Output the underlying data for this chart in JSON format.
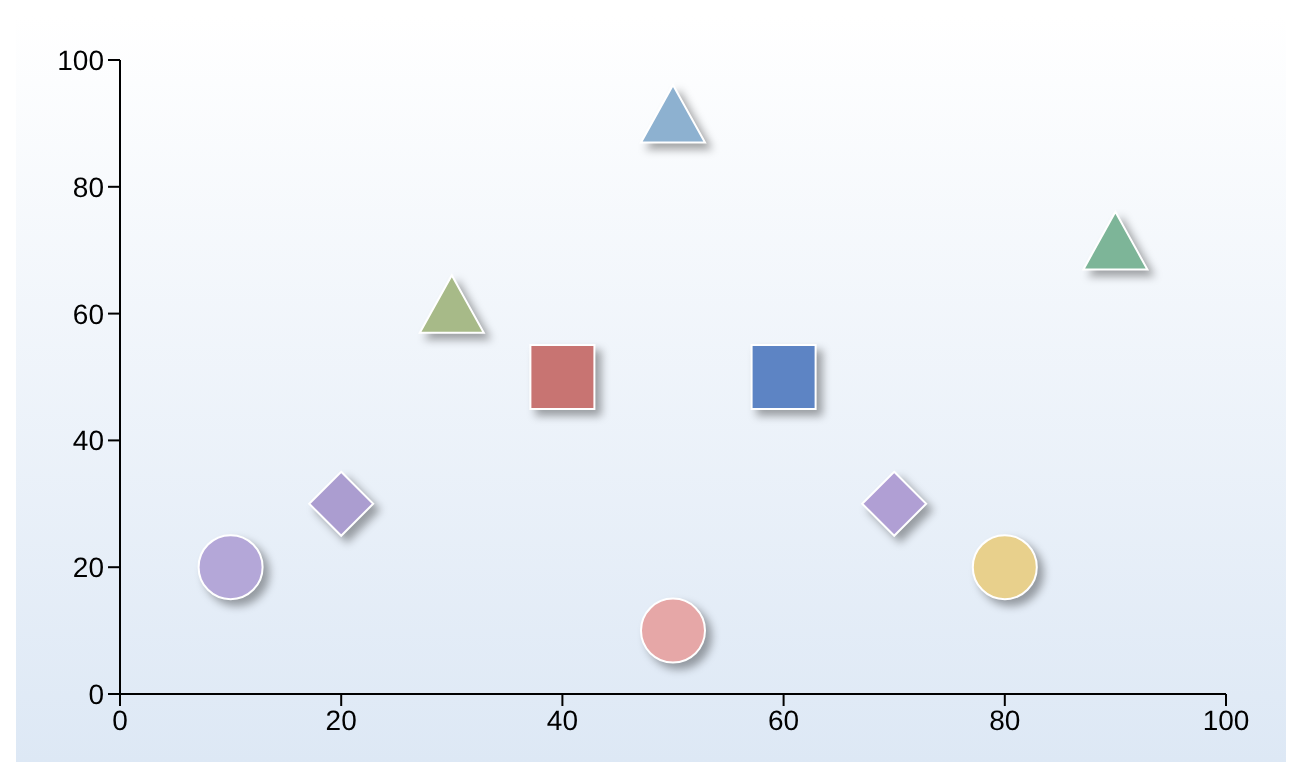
{
  "chart_data": {
    "type": "scatter",
    "series": [
      {
        "x": [
          10
        ],
        "values": [
          20
        ],
        "color": "#b4a7d8",
        "marker": "circle"
      },
      {
        "x": [
          20
        ],
        "values": [
          30
        ],
        "color": "#ab9dd0",
        "marker": "diamond"
      },
      {
        "x": [
          30
        ],
        "values": [
          60
        ],
        "color": "#a7ba88",
        "marker": "triangle"
      },
      {
        "x": [
          40
        ],
        "values": [
          50
        ],
        "color": "#c87472",
        "marker": "square"
      },
      {
        "x": [
          50
        ],
        "values": [
          90
        ],
        "color": "#8db1d0",
        "marker": "triangle"
      },
      {
        "x": [
          50
        ],
        "values": [
          10
        ],
        "color": "#e6a7a7",
        "marker": "circle"
      },
      {
        "x": [
          60
        ],
        "values": [
          50
        ],
        "color": "#5d84c4",
        "marker": "square"
      },
      {
        "x": [
          70
        ],
        "values": [
          30
        ],
        "color": "#b09fd4",
        "marker": "diamond"
      },
      {
        "x": [
          80
        ],
        "values": [
          20
        ],
        "color": "#e8d08c",
        "marker": "circle"
      },
      {
        "x": [
          90
        ],
        "values": [
          70
        ],
        "color": "#7db598",
        "marker": "triangle"
      }
    ],
    "xlim": [
      0,
      100
    ],
    "xticks": [
      0,
      20,
      40,
      60,
      80,
      100
    ],
    "ylim": [
      0,
      100
    ],
    "yticks": [
      0,
      20,
      40,
      60,
      80,
      100
    ],
    "grid": false,
    "legend": false
  }
}
